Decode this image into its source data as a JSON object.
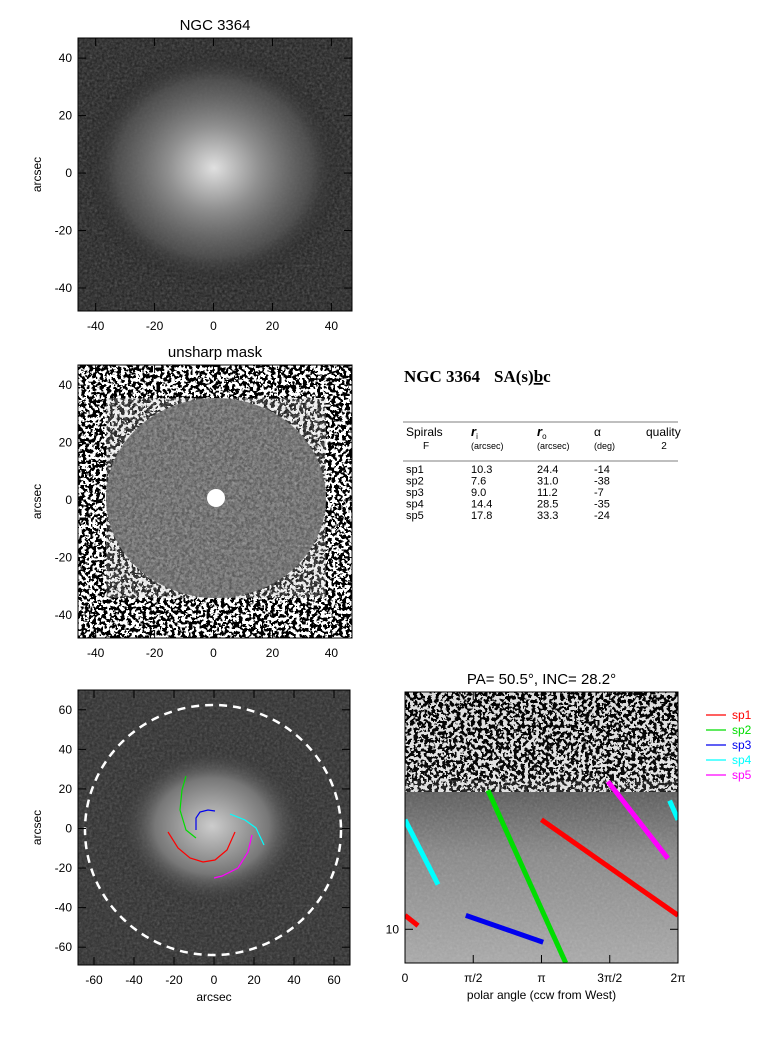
{
  "chart_data": [
    {
      "type": "image",
      "title": "NGC 3364",
      "ylabel": "arcsec",
      "xlim": [
        -46,
        47
      ],
      "ylim": [
        -48,
        47
      ],
      "xticks": [
        -40,
        -20,
        0,
        20,
        40
      ],
      "yticks": [
        -40,
        -20,
        0,
        20,
        40
      ]
    },
    {
      "type": "image",
      "title": "unsharp mask",
      "ylabel": "arcsec",
      "xlim": [
        -46,
        47
      ],
      "ylim": [
        -48,
        47
      ],
      "xticks": [
        -40,
        -20,
        0,
        20,
        40
      ],
      "yticks": [
        -40,
        -20,
        0,
        20,
        40
      ]
    },
    {
      "type": "image",
      "xlabel": "arcsec",
      "ylabel": "arcsec",
      "xlim": [
        -68,
        68
      ],
      "ylim": [
        -69,
        70
      ],
      "xticks": [
        -60,
        -40,
        -20,
        0,
        20,
        40,
        60
      ],
      "yticks": [
        -60,
        -40,
        -20,
        0,
        20,
        40,
        60
      ]
    },
    {
      "type": "line",
      "title": "PA= 50.5°, INC= 28.2°",
      "xlabel": "polar angle (ccw from West)",
      "xlim": [
        0,
        6.2832
      ],
      "ylim": [
        7.6,
        69
      ],
      "ylog": true,
      "legend": "outside right",
      "xticks": [
        {
          "value": 0,
          "label": "0"
        },
        {
          "value": 1.5708,
          "label": "π/2"
        },
        {
          "value": 3.1416,
          "label": "π"
        },
        {
          "value": 4.7124,
          "label": "3π/2"
        },
        {
          "value": 6.2832,
          "label": "2π"
        }
      ],
      "yticks": [
        10
      ],
      "series": [
        {
          "name": "sp1",
          "color": "#ff0000",
          "x": [
            3.14,
            6.2832,
            null,
            0,
            0.3
          ],
          "values": [
            24.4,
            11.2,
            null,
            11.2,
            10.3
          ]
        },
        {
          "name": "sp2",
          "color": "#00dd00",
          "x": [
            1.91,
            3.7
          ],
          "values": [
            31.0,
            7.6
          ]
        },
        {
          "name": "sp3",
          "color": "#0000ee",
          "x": [
            1.4,
            3.18
          ],
          "values": [
            11.2,
            9.0
          ]
        },
        {
          "name": "sp4",
          "color": "#00ffff",
          "x": [
            6.09,
            6.2832,
            null,
            0,
            0.76
          ],
          "values": [
            28.5,
            24.4,
            null,
            24.4,
            14.4
          ]
        },
        {
          "name": "sp5",
          "color": "#ff00ff",
          "x": [
            4.67,
            6.05
          ],
          "values": [
            33.3,
            17.8
          ]
        }
      ]
    }
  ],
  "table": {
    "title": "NGC 3364",
    "morphology": [
      "SA(s)",
      "b",
      "c"
    ],
    "columns": [
      {
        "label": "Spirals",
        "sub": "F"
      },
      {
        "label": "r",
        "index": "i",
        "unit": "(arcsec)"
      },
      {
        "label": "r",
        "index": "o",
        "unit": "(arcsec)"
      },
      {
        "label": "α",
        "unit": "(deg)"
      },
      {
        "label": "quality",
        "sub": "2"
      }
    ],
    "rows": [
      [
        "sp1",
        "10.3",
        "24.4",
        "-14"
      ],
      [
        "sp2",
        "7.6",
        "31.0",
        "-38"
      ],
      [
        "sp3",
        "9.0",
        "11.2",
        "-7"
      ],
      [
        "sp4",
        "14.4",
        "28.5",
        "-35"
      ],
      [
        "sp5",
        "17.8",
        "33.3",
        "-24"
      ]
    ]
  }
}
